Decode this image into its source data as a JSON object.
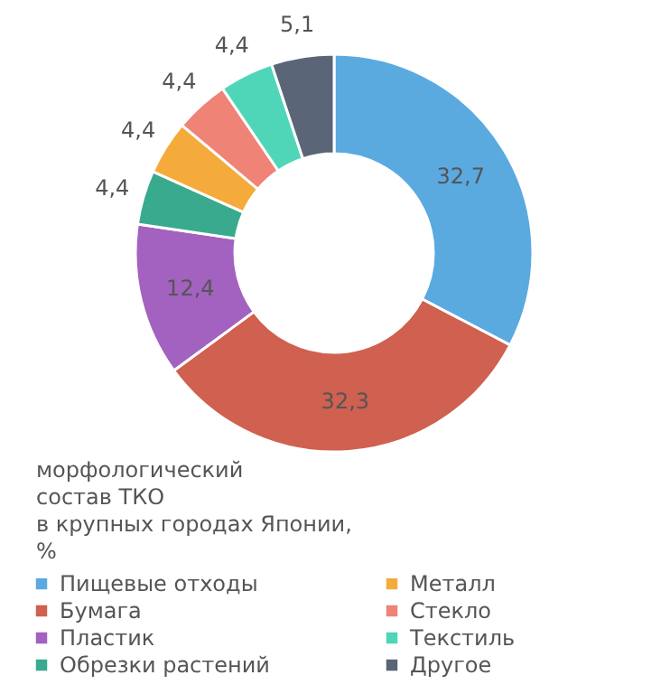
{
  "chart_data": {
    "type": "donut",
    "title": "морфологический\nсостав ТКО\nв крупных городах Японии,\n%",
    "categories": [
      "Пищевые отходы",
      "Бумага",
      "Пластик",
      "Обрезки растений",
      "Металл",
      "Стекло",
      "Текстиль",
      "Другое"
    ],
    "values": [
      32.7,
      32.3,
      12.4,
      4.4,
      4.4,
      4.4,
      4.4,
      5.1
    ],
    "value_labels": [
      "32,7",
      "32,3",
      "12,4",
      "4,4",
      "4,4",
      "4,4",
      "4,4",
      "5,1"
    ],
    "colors": [
      "#5aaae0",
      "#d0604f",
      "#a361c0",
      "#3aaa8f",
      "#f5ab3b",
      "#ee8376",
      "#4fd6b8",
      "#5a6578"
    ],
    "legend": "bottom"
  }
}
